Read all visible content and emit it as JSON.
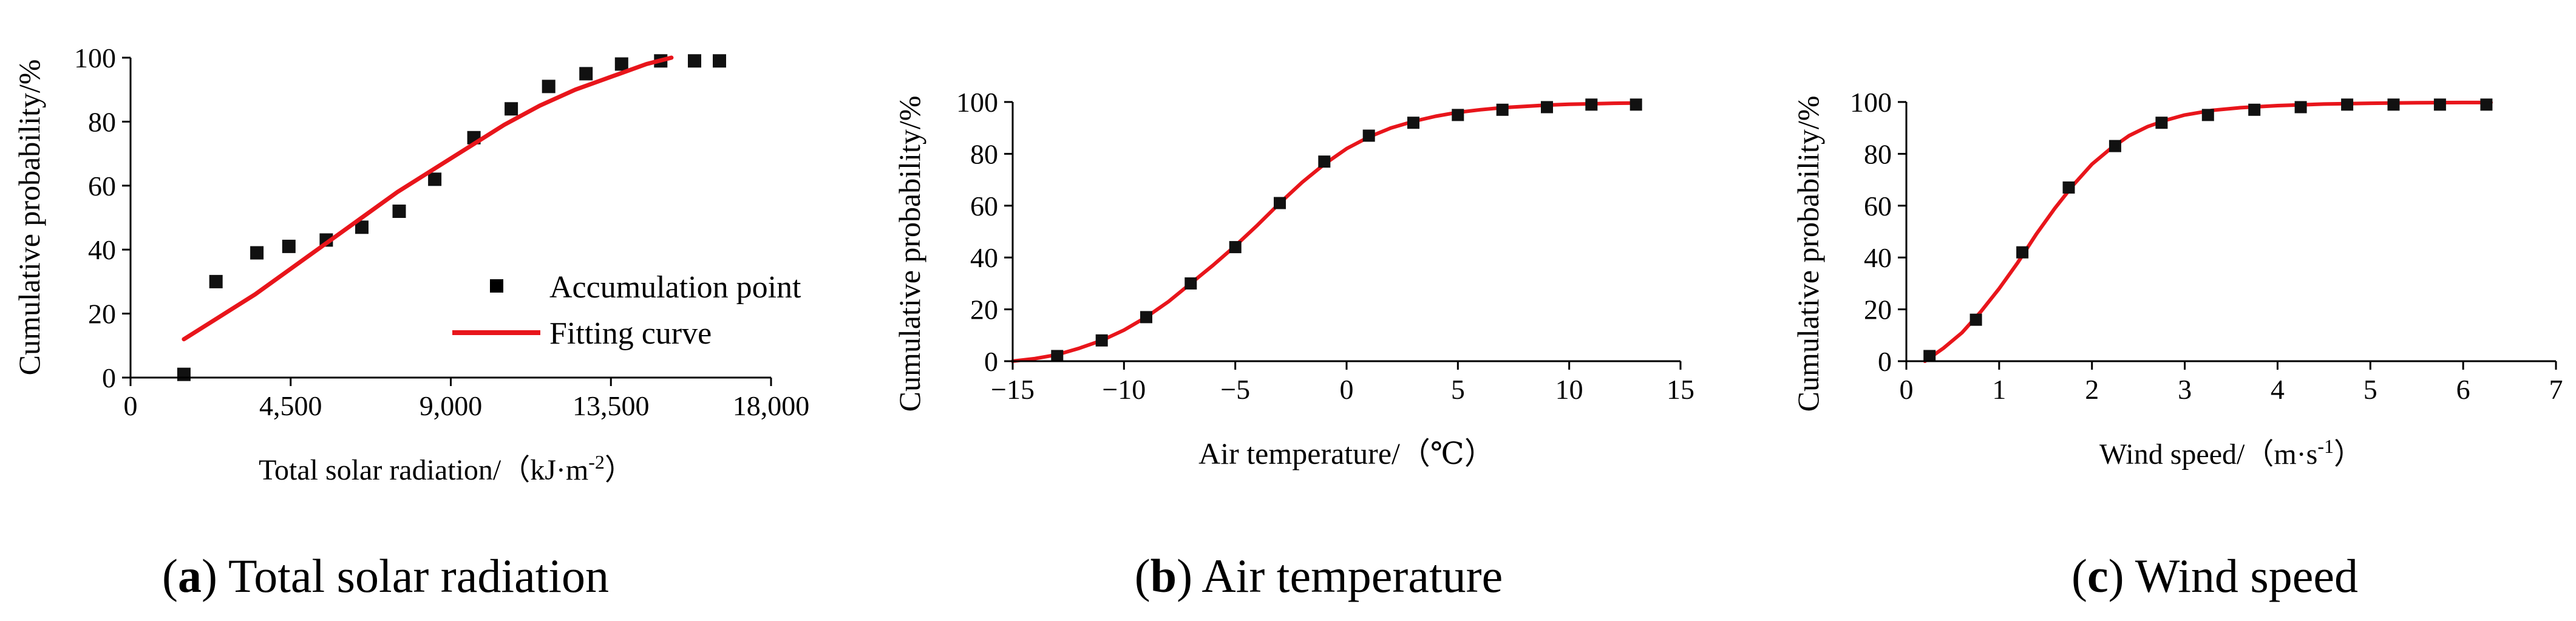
{
  "chart_data": [
    {
      "type": "scatter",
      "ylabel": "Cumulative probability/%",
      "xlabel": "Total solar radiation/（kJ·m",
      "xlabel_sup": "-2",
      "xlabel_tail": "）",
      "xlim": [
        0,
        18000
      ],
      "ylim": [
        0,
        100
      ],
      "xticks": [
        0,
        4500,
        9000,
        13500,
        18000
      ],
      "xtick_labels": [
        "0",
        "4,500",
        "9,000",
        "13,500",
        "18,000"
      ],
      "yticks": [
        0,
        20,
        40,
        60,
        80,
        100
      ],
      "ytick_labels": [
        "0",
        "20",
        "40",
        "60",
        "80",
        "100"
      ],
      "grid": false,
      "legend_position": "bottom-right",
      "caption_letter": "a",
      "caption_text": "Total solar radiation",
      "series": [
        {
          "name": "Accumulation point",
          "kind": "points",
          "x": [
            1500,
            2400,
            3550,
            4450,
            5500,
            6500,
            7550,
            8550,
            9650,
            10700,
            11750,
            12800,
            13800,
            14900,
            15850,
            16550
          ],
          "y": [
            1,
            30,
            39,
            41,
            43,
            47,
            52,
            62,
            75,
            84,
            91,
            95,
            98,
            99,
            99,
            99
          ]
        },
        {
          "name": "Fitting curve",
          "kind": "line",
          "color": "#e8151b",
          "x": [
            1500,
            2500,
            3500,
            4500,
            5500,
            6500,
            7500,
            8500,
            9500,
            10500,
            11500,
            12500,
            13500,
            14500,
            15200
          ],
          "y": [
            12,
            19,
            26,
            34,
            42,
            50,
            58,
            65,
            72,
            79,
            85,
            90,
            94,
            98,
            100
          ]
        }
      ]
    },
    {
      "type": "scatter",
      "ylabel": "Cumulative probability/%",
      "xlabel": "Air temperature/（℃）",
      "xlim": [
        -15,
        15
      ],
      "ylim": [
        0,
        100
      ],
      "xticks": [
        -15,
        -10,
        -5,
        0,
        5,
        10,
        15
      ],
      "xtick_labels": [
        "−15",
        "−10",
        "−5",
        "0",
        "5",
        "10",
        "15"
      ],
      "yticks": [
        0,
        20,
        40,
        60,
        80,
        100
      ],
      "ytick_labels": [
        "0",
        "20",
        "40",
        "60",
        "80",
        "100"
      ],
      "grid": false,
      "caption_letter": "b",
      "caption_text": "Air temperature",
      "series": [
        {
          "kind": "points",
          "x": [
            -13,
            -11,
            -9,
            -7,
            -5,
            -3,
            -1,
            1,
            3,
            5,
            7,
            9,
            11,
            13
          ],
          "y": [
            2,
            8,
            17,
            30,
            44,
            61,
            77,
            87,
            92,
            95,
            97,
            98,
            99,
            99
          ]
        },
        {
          "kind": "line",
          "color": "#e8151b",
          "x": [
            -15,
            -14,
            -13,
            -12,
            -11,
            -10,
            -9,
            -8,
            -7,
            -6,
            -5,
            -4,
            -3,
            -2,
            -1,
            0,
            1,
            2,
            3,
            4,
            5,
            6,
            7,
            8,
            9,
            10,
            11,
            12,
            13
          ],
          "y": [
            0,
            1,
            2.5,
            5,
            8,
            12,
            17,
            23,
            30,
            37,
            44.5,
            52.5,
            61,
            69,
            76,
            82,
            86.5,
            90,
            92.5,
            94.5,
            96,
            97,
            97.8,
            98.3,
            98.8,
            99.1,
            99.3,
            99.5,
            99.6
          ]
        }
      ]
    },
    {
      "type": "scatter",
      "ylabel": "Cumulative probability/%",
      "xlabel": "Wind speed/（m·s",
      "xlabel_sup": "-1",
      "xlabel_tail": "）",
      "xlim": [
        0,
        7
      ],
      "ylim": [
        0,
        100
      ],
      "xticks": [
        0,
        1,
        2,
        3,
        4,
        5,
        6,
        7
      ],
      "xtick_labels": [
        "0",
        "1",
        "2",
        "3",
        "4",
        "5",
        "6",
        "7"
      ],
      "yticks": [
        0,
        20,
        40,
        60,
        80,
        100
      ],
      "ytick_labels": [
        "0",
        "20",
        "40",
        "60",
        "80",
        "100"
      ],
      "grid": false,
      "caption_letter": "c",
      "caption_text": "Wind speed",
      "series": [
        {
          "kind": "points",
          "x": [
            0.25,
            0.75,
            1.25,
            1.75,
            2.25,
            2.75,
            3.25,
            3.75,
            4.25,
            4.75,
            5.25,
            5.75,
            6.25
          ],
          "y": [
            2,
            16,
            42,
            67,
            83,
            92,
            95,
            97,
            98,
            99,
            99,
            99,
            99
          ]
        },
        {
          "kind": "line",
          "color": "#e8151b",
          "x": [
            0.2,
            0.4,
            0.6,
            0.8,
            1.0,
            1.2,
            1.4,
            1.6,
            1.8,
            2.0,
            2.2,
            2.4,
            2.6,
            2.8,
            3.0,
            3.3,
            3.6,
            4.0,
            4.5,
            5.0,
            5.5,
            6.0,
            6.3
          ],
          "y": [
            0,
            5,
            11,
            19,
            28,
            38,
            49,
            59,
            68,
            76,
            82,
            87,
            90.5,
            93,
            95,
            96.8,
            97.8,
            98.6,
            99.2,
            99.5,
            99.7,
            99.8,
            99.8
          ]
        }
      ]
    }
  ]
}
